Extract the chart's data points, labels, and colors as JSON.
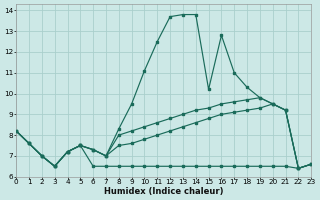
{
  "xlabel": "Humidex (Indice chaleur)",
  "xlim": [
    0,
    23
  ],
  "ylim": [
    6,
    14.3
  ],
  "xticks": [
    0,
    1,
    2,
    3,
    4,
    5,
    6,
    7,
    8,
    9,
    10,
    11,
    12,
    13,
    14,
    15,
    16,
    17,
    18,
    19,
    20,
    21,
    22,
    23
  ],
  "yticks": [
    6,
    7,
    8,
    9,
    10,
    11,
    12,
    13,
    14
  ],
  "bg_color": "#cce8e6",
  "grid_color": "#aacfcc",
  "line_color": "#1a6b5a",
  "line1_x": [
    0,
    1,
    2,
    3,
    4,
    5,
    6,
    7,
    8,
    9,
    10,
    11,
    12,
    13,
    14,
    15,
    16,
    17,
    18,
    19,
    20,
    21,
    22,
    23
  ],
  "line1_y": [
    8.2,
    7.6,
    7.0,
    6.5,
    7.2,
    7.5,
    7.3,
    7.0,
    8.3,
    9.5,
    11.1,
    12.5,
    13.7,
    13.8,
    13.8,
    10.2,
    12.8,
    11.0,
    10.3,
    9.8,
    9.5,
    9.2,
    6.4,
    6.6
  ],
  "line2_x": [
    0,
    1,
    2,
    3,
    4,
    5,
    6,
    7,
    8,
    9,
    10,
    11,
    12,
    13,
    14,
    15,
    16,
    17,
    18,
    19,
    20,
    21,
    22,
    23
  ],
  "line2_y": [
    8.2,
    7.6,
    7.0,
    6.5,
    7.2,
    7.5,
    7.3,
    7.0,
    8.0,
    8.2,
    8.4,
    8.6,
    8.8,
    9.0,
    9.2,
    9.3,
    9.5,
    9.6,
    9.7,
    9.8,
    9.5,
    9.2,
    6.4,
    6.6
  ],
  "line3_x": [
    0,
    1,
    2,
    3,
    4,
    5,
    6,
    7,
    8,
    9,
    10,
    11,
    12,
    13,
    14,
    15,
    16,
    17,
    18,
    19,
    20,
    21,
    22,
    23
  ],
  "line3_y": [
    8.2,
    7.6,
    7.0,
    6.5,
    7.2,
    7.5,
    7.3,
    7.0,
    7.5,
    7.6,
    7.8,
    8.0,
    8.2,
    8.4,
    8.6,
    8.8,
    9.0,
    9.1,
    9.2,
    9.3,
    9.5,
    9.2,
    6.4,
    6.6
  ],
  "line4_x": [
    0,
    1,
    2,
    3,
    4,
    5,
    6,
    7,
    8,
    9,
    10,
    11,
    12,
    13,
    14,
    15,
    16,
    17,
    18,
    19,
    20,
    21,
    22,
    23
  ],
  "line4_y": [
    8.2,
    7.6,
    7.0,
    6.5,
    7.2,
    7.5,
    6.5,
    6.5,
    6.5,
    6.5,
    6.5,
    6.5,
    6.5,
    6.5,
    6.5,
    6.5,
    6.5,
    6.5,
    6.5,
    6.5,
    6.5,
    6.5,
    6.4,
    6.6
  ]
}
